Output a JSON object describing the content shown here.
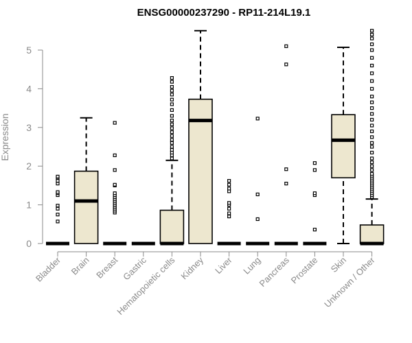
{
  "chart_data": {
    "type": "box",
    "title": "ENSG00000237290 - RP11-214L19.1",
    "xlabel": "",
    "ylabel": "Expression",
    "ylim": [
      0,
      5.6
    ],
    "yticks": [
      0,
      1,
      2,
      3,
      4,
      5
    ],
    "box_color": "#ede7cf",
    "categories": [
      "Bladder",
      "Brain",
      "Breast",
      "Gastric",
      "Hematopoietic cells",
      "Kidney",
      "Liver",
      "Lung",
      "Pancreas",
      "Prostate",
      "Skin",
      "Unknown / Other"
    ],
    "boxes": [
      {
        "name": "Bladder",
        "whisker_low": 0,
        "q1": 0,
        "median": 0,
        "q3": 0,
        "whisker_high": 0,
        "outliers": [
          0.57,
          0.75,
          0.9,
          0.98,
          1.25,
          1.3,
          1.33,
          1.55,
          1.62,
          1.7,
          1.73
        ]
      },
      {
        "name": "Brain",
        "whisker_low": 0,
        "q1": 0,
        "median": 1.1,
        "q3": 1.87,
        "whisker_high": 3.25,
        "outliers": []
      },
      {
        "name": "Breast",
        "whisker_low": 0,
        "q1": 0,
        "median": 0,
        "q3": 0,
        "whisker_high": 0,
        "outliers": [
          0.8,
          0.85,
          0.9,
          0.95,
          1.0,
          1.05,
          1.1,
          1.15,
          1.2,
          1.25,
          1.3,
          1.5,
          1.52,
          1.9,
          2.28,
          3.12
        ]
      },
      {
        "name": "Gastric",
        "whisker_low": 0,
        "q1": 0,
        "median": 0,
        "q3": 0,
        "whisker_high": 0,
        "outliers": []
      },
      {
        "name": "Hematopoietic cells",
        "whisker_low": 0,
        "q1": 0,
        "median": 0,
        "q3": 0.86,
        "whisker_high": 2.15,
        "outliers": [
          2.2,
          2.28,
          2.35,
          2.42,
          2.5,
          2.6,
          2.68,
          2.78,
          2.88,
          2.98,
          3.08,
          3.18,
          3.3,
          3.45,
          3.6,
          3.72,
          3.85,
          3.95,
          4.05,
          4.18,
          4.28
        ]
      },
      {
        "name": "Kidney",
        "whisker_low": 0,
        "q1": 0,
        "median": 3.18,
        "q3": 3.73,
        "whisker_high": 5.5,
        "outliers": []
      },
      {
        "name": "Liver",
        "whisker_low": 0,
        "q1": 0,
        "median": 0,
        "q3": 0,
        "whisker_high": 0,
        "outliers": [
          0.7,
          0.78,
          0.9,
          1.0,
          1.05,
          1.35,
          1.42,
          1.52,
          1.62
        ]
      },
      {
        "name": "Lung",
        "whisker_low": 0,
        "q1": 0,
        "median": 0,
        "q3": 0,
        "whisker_high": 0,
        "outliers": [
          0.63,
          1.27,
          3.23
        ]
      },
      {
        "name": "Pancreas",
        "whisker_low": 0,
        "q1": 0,
        "median": 0,
        "q3": 0,
        "whisker_high": 0,
        "outliers": [
          1.55,
          1.92,
          4.63,
          5.1
        ]
      },
      {
        "name": "Prostate",
        "whisker_low": 0,
        "q1": 0,
        "median": 0,
        "q3": 0,
        "whisker_high": 0,
        "outliers": [
          0.36,
          1.25,
          1.3,
          1.9,
          2.08
        ]
      },
      {
        "name": "Skin",
        "whisker_low": 0,
        "q1": 1.7,
        "median": 2.67,
        "q3": 3.33,
        "whisker_high": 5.07,
        "outliers": []
      },
      {
        "name": "Unknown / Other",
        "whisker_low": 0,
        "q1": 0,
        "median": 0,
        "q3": 0.48,
        "whisker_high": 1.15,
        "outliers": [
          1.2,
          1.25,
          1.3,
          1.35,
          1.4,
          1.45,
          1.5,
          1.55,
          1.6,
          1.65,
          1.7,
          1.75,
          1.8,
          1.9,
          2.0,
          2.1,
          2.2,
          2.35,
          2.5,
          2.6,
          2.75,
          2.9,
          3.05,
          3.2,
          3.35,
          3.5,
          3.65,
          3.8,
          4.0,
          4.2,
          4.4,
          4.6,
          4.8,
          5.0,
          5.15,
          5.3,
          5.4,
          5.5
        ]
      }
    ]
  }
}
